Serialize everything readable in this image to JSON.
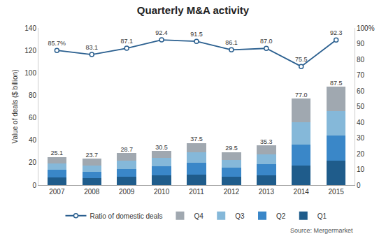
{
  "chart_data": {
    "type": "bar",
    "stacked": true,
    "title": "Quarterly M&A activity",
    "ylabel": "Value of deals ($ billion)",
    "source": "Source: Mergermarket",
    "categories": [
      "2007",
      "2008",
      "2009",
      "2010",
      "2011",
      "2012",
      "2013",
      "2014",
      "2015"
    ],
    "series": [
      {
        "name": "Q1",
        "type": "bar",
        "color": "#1f5c8b",
        "values": [
          7.0,
          6.0,
          7.5,
          8.5,
          9.5,
          7.5,
          9.0,
          17.5,
          22.0
        ]
      },
      {
        "name": "Q2",
        "type": "bar",
        "color": "#3a87c8",
        "values": [
          6.5,
          6.0,
          7.0,
          8.5,
          10.5,
          8.0,
          9.5,
          18.5,
          22.0
        ]
      },
      {
        "name": "Q3",
        "type": "bar",
        "color": "#85b8d9",
        "values": [
          5.5,
          5.5,
          7.0,
          7.5,
          9.5,
          7.0,
          9.0,
          20.0,
          22.0
        ]
      },
      {
        "name": "Q4",
        "type": "bar",
        "color": "#a0a8b0",
        "values": [
          6.1,
          6.2,
          7.2,
          6.0,
          8.0,
          7.0,
          7.8,
          21.0,
          21.5
        ]
      },
      {
        "name": "Ratio of domestic deals",
        "type": "line",
        "axis": "y2",
        "color": "#2a5f8f",
        "marker": "circle",
        "values": [
          85.7,
          83.1,
          87.1,
          92.4,
          91.5,
          86.1,
          87.0,
          75.5,
          92.3
        ],
        "value_labels": [
          "85.7%",
          "83.1",
          "87.1",
          "92.4",
          "91.5",
          "86.1",
          "87.0",
          "75.5",
          "92.3"
        ]
      }
    ],
    "totals": [
      25.1,
      23.7,
      28.7,
      30.5,
      37.5,
      29.5,
      35.3,
      77.0,
      87.5
    ],
    "total_labels": [
      "25.1",
      "23.7",
      "28.7",
      "30.5",
      "37.5",
      "29.5",
      "35.3",
      "77.0",
      "87.5"
    ],
    "data_labels": true,
    "ylim": [
      0,
      140
    ],
    "yticks": [
      0,
      20,
      40,
      60,
      80,
      100,
      120,
      140
    ],
    "y2lim": [
      0,
      100
    ],
    "y2ticks": [
      0,
      10,
      20,
      30,
      40,
      50,
      60,
      70,
      80,
      90,
      {
        "value": 100,
        "label": "100%"
      }
    ],
    "grid": false,
    "legend": "bottom"
  }
}
